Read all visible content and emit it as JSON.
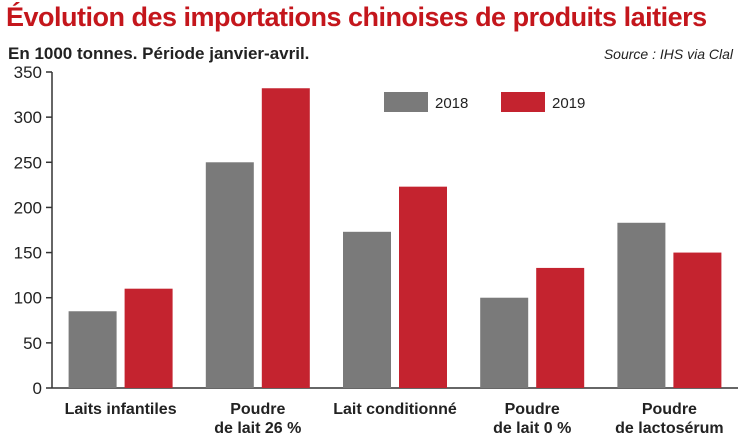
{
  "chart_data": {
    "type": "bar",
    "title": "Évolution des importations chinoises de produits laitiers",
    "subtitle": "En 1000 tonnes. Période janvier-avril.",
    "source": "Source : IHS via Clal",
    "categories": [
      [
        "Laits infantiles"
      ],
      [
        "Poudre",
        "de lait 26 %"
      ],
      [
        "Lait conditionné"
      ],
      [
        "Poudre",
        "de lait 0 %"
      ],
      [
        "Poudre",
        "de lactosérum"
      ]
    ],
    "series": [
      {
        "name": "2018",
        "color": "#7a7a7a",
        "values": [
          85,
          250,
          173,
          100,
          183
        ]
      },
      {
        "name": "2019",
        "color": "#c4232f",
        "values": [
          110,
          332,
          223,
          133,
          150
        ]
      }
    ],
    "yticks": [
      0,
      50,
      100,
      150,
      200,
      250,
      300,
      350
    ],
    "ylim": [
      0,
      350
    ],
    "grid": false,
    "legend": "top-right"
  }
}
